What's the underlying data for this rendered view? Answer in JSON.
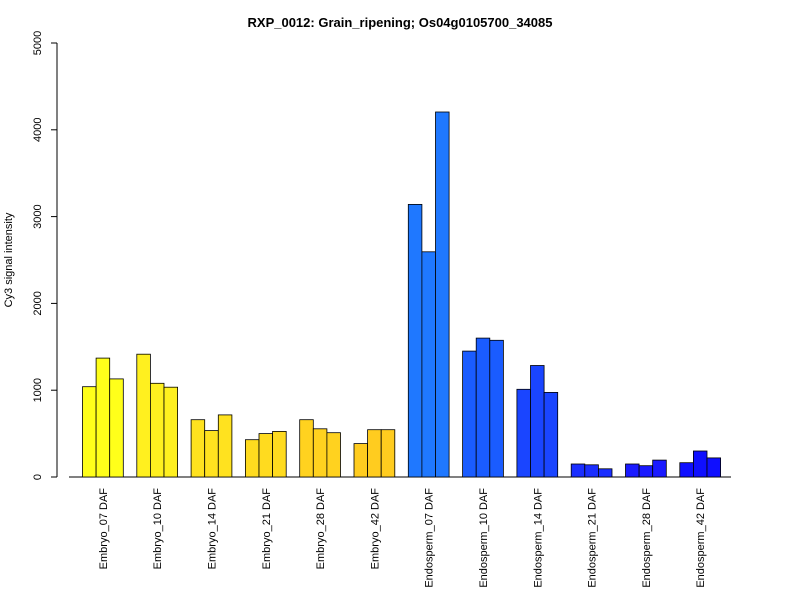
{
  "chart_data": {
    "type": "bar",
    "title": "RXP_0012: Grain_ripening; Os04g0105700_34085",
    "xlabel": "",
    "ylabel": "Cy3 signal intensity",
    "ylim": [
      0,
      5000
    ],
    "yticks": [
      "0",
      "1000",
      "2000",
      "3000",
      "4000",
      "5000"
    ],
    "grid": false,
    "bars_per_group": 3,
    "categories": [
      "Embryo_07 DAF",
      "Embryo_10 DAF",
      "Embryo_14 DAF",
      "Embryo_21 DAF",
      "Embryo_28 DAF",
      "Embryo_42 DAF",
      "Endosperm_07 DAF",
      "Endosperm_10 DAF",
      "Endosperm_14 DAF",
      "Endosperm_21 DAF",
      "Endosperm_28 DAF",
      "Endosperm_42 DAF"
    ],
    "group_colors": [
      "#ffff1a",
      "#fff01f",
      "#ffe21f",
      "#ffdb1f",
      "#ffd21f",
      "#ffcc1f",
      "#1f78ff",
      "#1a5cff",
      "#1a45ff",
      "#1a2eff",
      "#1a1aff",
      "#0f0fff"
    ],
    "values": [
      [
        1040,
        1370,
        1130
      ],
      [
        1415,
        1080,
        1035
      ],
      [
        660,
        535,
        715
      ],
      [
        430,
        500,
        525
      ],
      [
        660,
        555,
        510
      ],
      [
        385,
        545,
        545
      ],
      [
        3140,
        2595,
        4205
      ],
      [
        1450,
        1600,
        1575
      ],
      [
        1010,
        1285,
        975
      ],
      [
        150,
        140,
        95
      ],
      [
        150,
        130,
        195
      ],
      [
        165,
        300,
        220
      ]
    ]
  }
}
